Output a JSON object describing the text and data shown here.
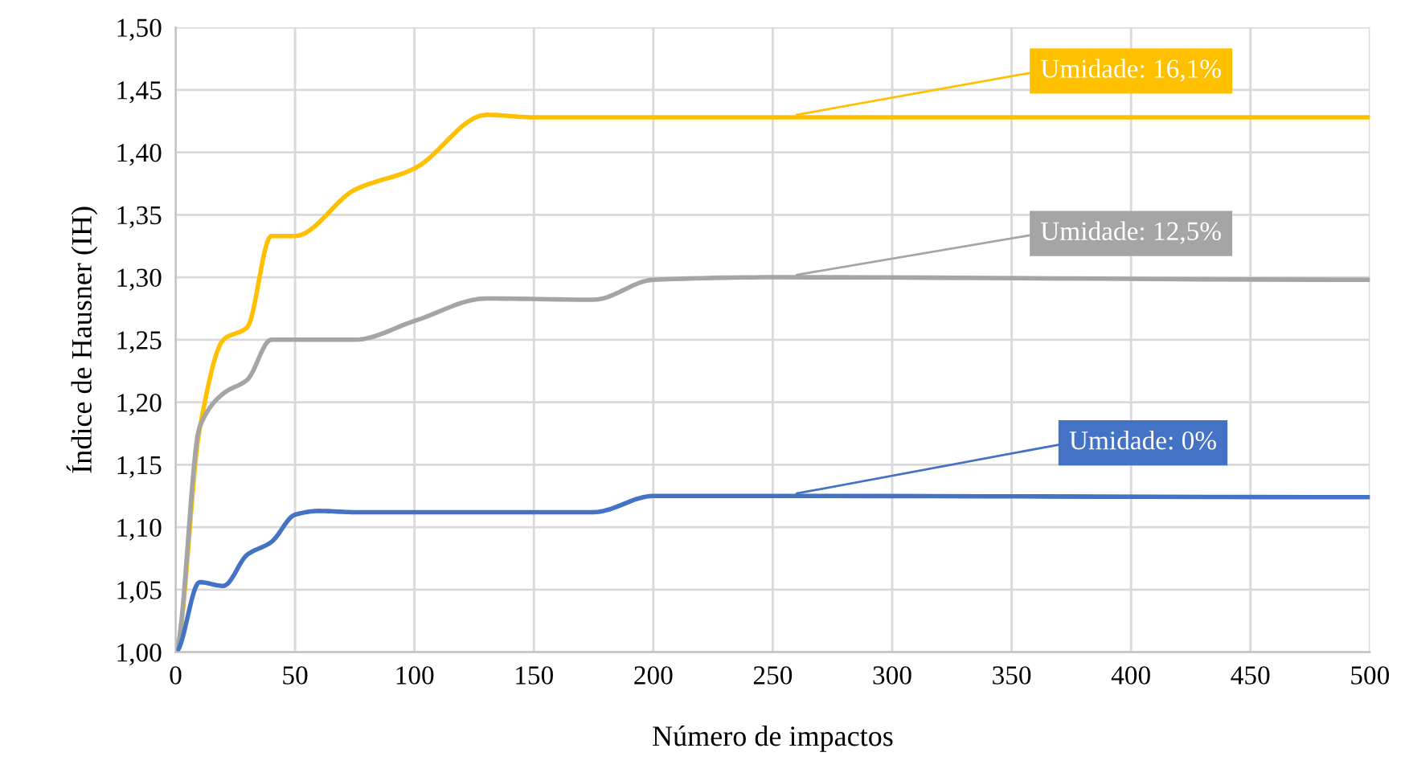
{
  "chart_data": {
    "type": "line",
    "xlabel": "Número de impactos",
    "ylabel": "Índice de Hausner (IH)",
    "xlim": [
      0,
      500
    ],
    "ylim": [
      1.0,
      1.5
    ],
    "xticks": [
      0,
      50,
      100,
      150,
      200,
      250,
      300,
      350,
      400,
      450,
      500
    ],
    "yticks": [
      {
        "value": 1.0,
        "label": "1,00"
      },
      {
        "value": 1.05,
        "label": "1,05"
      },
      {
        "value": 1.1,
        "label": "1,10"
      },
      {
        "value": 1.15,
        "label": "1,15"
      },
      {
        "value": 1.2,
        "label": "1,20"
      },
      {
        "value": 1.25,
        "label": "1,25"
      },
      {
        "value": 1.3,
        "label": "1,30"
      },
      {
        "value": 1.35,
        "label": "1,35"
      },
      {
        "value": 1.4,
        "label": "1,40"
      },
      {
        "value": 1.45,
        "label": "1,45"
      },
      {
        "value": 1.5,
        "label": "1,50"
      }
    ],
    "grid": true,
    "legend": false,
    "marker": "none",
    "line_style": "solid",
    "series": [
      {
        "name": "Umidade: 16,1%",
        "color": "#ffc000",
        "x": [
          0,
          10,
          20,
          30,
          40,
          50,
          75,
          100,
          130,
          150,
          250,
          500
        ],
        "values": [
          1.0,
          1.178,
          1.25,
          1.26,
          1.333,
          1.333,
          1.37,
          1.387,
          1.43,
          1.428,
          1.428,
          1.428
        ]
      },
      {
        "name": "Umidade: 12,5%",
        "color": "#a5a5a5",
        "x": [
          0,
          10,
          20,
          30,
          40,
          50,
          75,
          100,
          130,
          175,
          200,
          250,
          500
        ],
        "values": [
          1.0,
          1.18,
          1.207,
          1.218,
          1.25,
          1.25,
          1.25,
          1.265,
          1.283,
          1.282,
          1.298,
          1.3,
          1.298
        ]
      },
      {
        "name": "Umidade: 0%",
        "color": "#4472c4",
        "x": [
          0,
          10,
          20,
          30,
          40,
          50,
          60,
          75,
          150,
          175,
          200,
          250,
          500
        ],
        "values": [
          1.0,
          1.056,
          1.053,
          1.078,
          1.088,
          1.11,
          1.113,
          1.112,
          1.112,
          1.112,
          1.125,
          1.125,
          1.124
        ]
      }
    ]
  }
}
